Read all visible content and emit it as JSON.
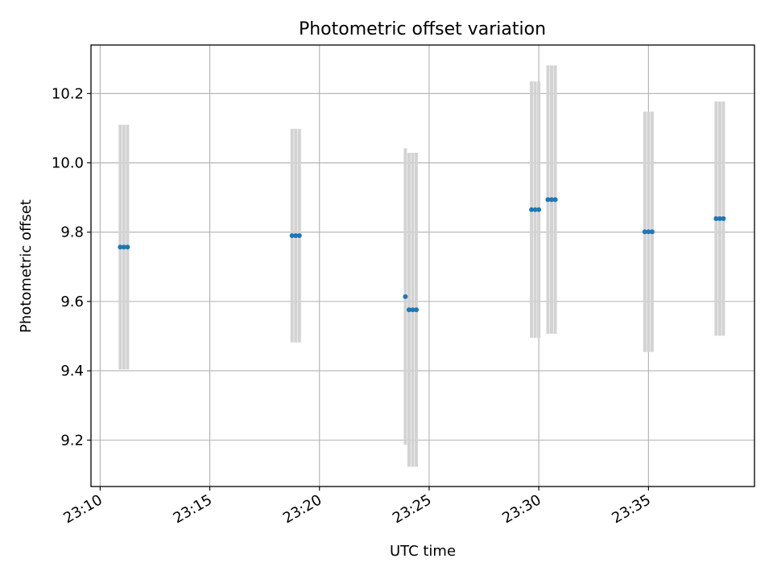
{
  "chart_data": {
    "type": "scatter",
    "title": "Photometric offset variation",
    "xlabel": "UTC time",
    "ylabel": "Photometric offset",
    "grid": true,
    "x_ticks": [
      "23:10",
      "23:15",
      "23:20",
      "23:25",
      "23:30",
      "23:35"
    ],
    "y_ticks": [
      "9.2",
      "9.4",
      "9.6",
      "9.8",
      "10.0",
      "10.2"
    ],
    "colors": {
      "point": "#1f77b4",
      "errorbar": "#d3d3d3",
      "grid": "#b0b0b0"
    },
    "series": [
      {
        "points": [
          {
            "x": "23:10:55",
            "y": 9.757,
            "err": 0.353
          },
          {
            "x": "23:11:05",
            "y": 9.757,
            "err": 0.353
          },
          {
            "x": "23:11:15",
            "y": 9.757,
            "err": 0.353
          },
          {
            "x": "23:18:45",
            "y": 9.79,
            "err": 0.308
          },
          {
            "x": "23:18:55",
            "y": 9.79,
            "err": 0.308
          },
          {
            "x": "23:19:05",
            "y": 9.79,
            "err": 0.308
          },
          {
            "x": "23:23:55",
            "y": 9.614,
            "err": 0.428
          },
          {
            "x": "23:24:05",
            "y": 9.576,
            "err": 0.453
          },
          {
            "x": "23:24:15",
            "y": 9.576,
            "err": 0.453
          },
          {
            "x": "23:24:25",
            "y": 9.576,
            "err": 0.453
          },
          {
            "x": "23:29:40",
            "y": 9.865,
            "err": 0.37
          },
          {
            "x": "23:29:50",
            "y": 9.865,
            "err": 0.37
          },
          {
            "x": "23:30:00",
            "y": 9.865,
            "err": 0.37
          },
          {
            "x": "23:30:25",
            "y": 9.894,
            "err": 0.387
          },
          {
            "x": "23:30:35",
            "y": 9.894,
            "err": 0.387
          },
          {
            "x": "23:30:45",
            "y": 9.894,
            "err": 0.387
          },
          {
            "x": "23:34:50",
            "y": 9.801,
            "err": 0.347
          },
          {
            "x": "23:35:00",
            "y": 9.801,
            "err": 0.347
          },
          {
            "x": "23:35:10",
            "y": 9.801,
            "err": 0.347
          },
          {
            "x": "23:38:05",
            "y": 9.839,
            "err": 0.338
          },
          {
            "x": "23:38:15",
            "y": 9.839,
            "err": 0.338
          },
          {
            "x": "23:38:25",
            "y": 9.839,
            "err": 0.338
          }
        ]
      }
    ],
    "xlim": [
      "23:09:35",
      "23:39:50"
    ],
    "ylim": [
      9.066,
      10.34
    ]
  }
}
